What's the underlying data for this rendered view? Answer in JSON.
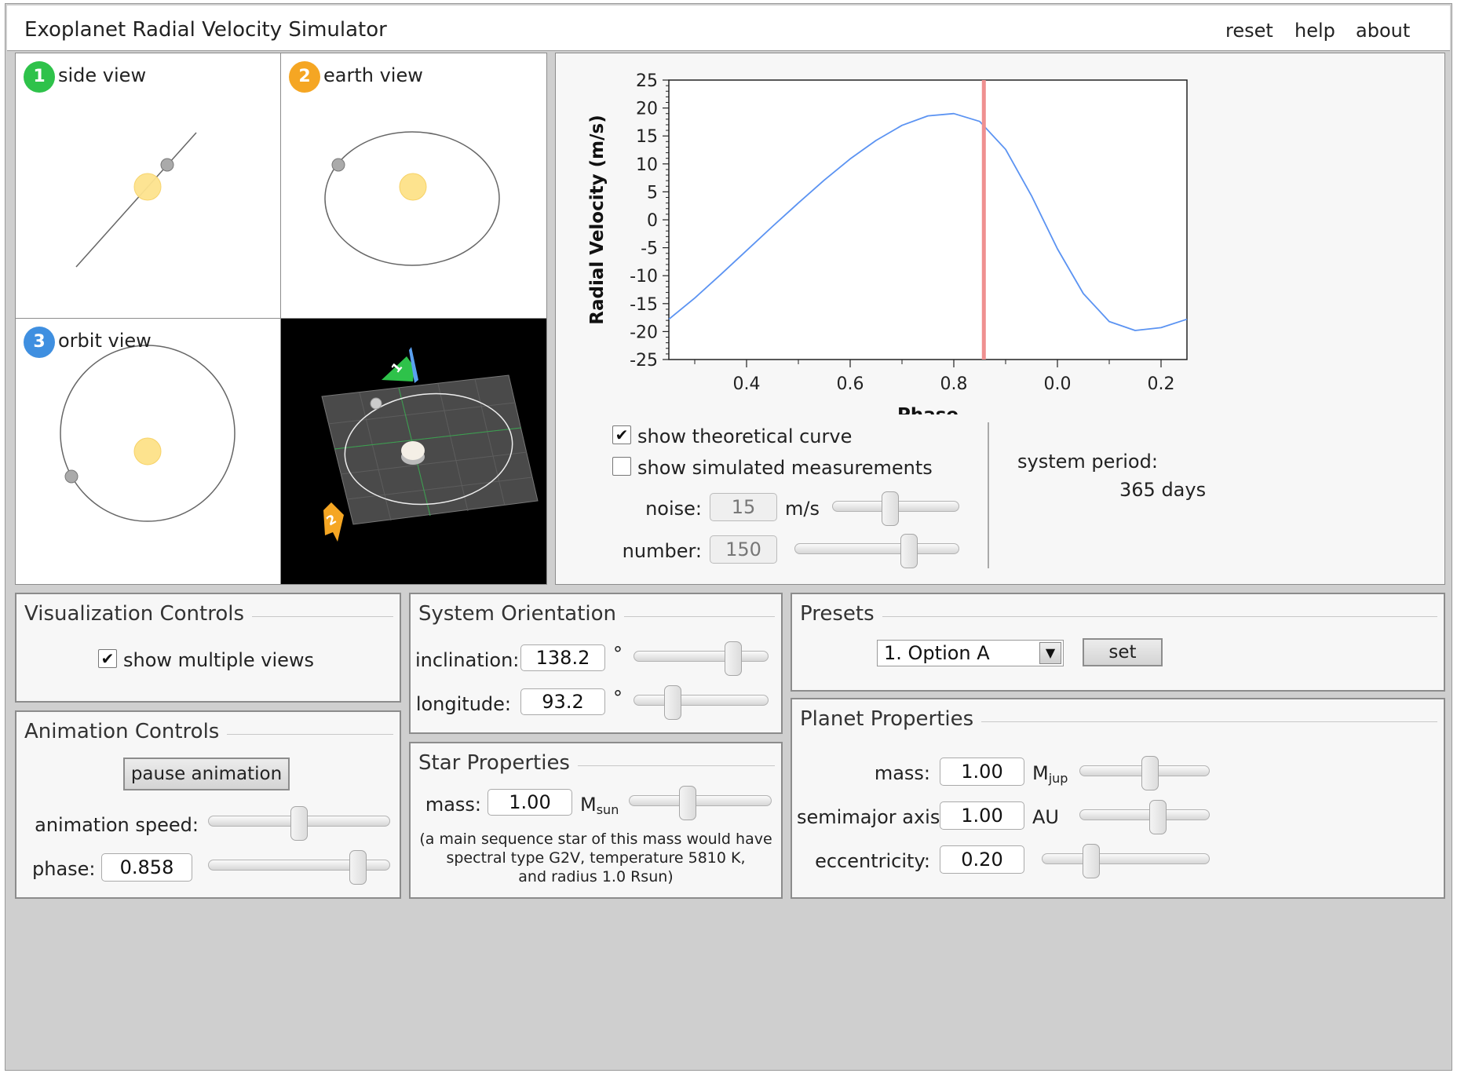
{
  "app": {
    "title": "Exoplanet Radial Velocity Simulator",
    "menu": {
      "reset": "reset",
      "help": "help",
      "about": "about"
    }
  },
  "views": {
    "side": {
      "number": "1",
      "label": "side view",
      "badge_color": "#2ec24a"
    },
    "earth": {
      "number": "2",
      "label": "earth view",
      "badge_color": "#f5a623"
    },
    "orbit": {
      "number": "3",
      "label": "orbit view",
      "badge_color": "#3f8fe0"
    },
    "three_d": {
      "earth_marker": "2",
      "north_marker": "1",
      "icon": "3d-orbit-scene"
    }
  },
  "chart_data": {
    "type": "line",
    "xlabel": "Phase",
    "ylabel": "Radial Velocity (m/s)",
    "x_ticks": [
      "0.4",
      "0.6",
      "0.8",
      "0.0",
      "0.2"
    ],
    "y_ticks": [
      "25",
      "20",
      "15",
      "10",
      "5",
      "0",
      "-5",
      "-10",
      "-15",
      "-20",
      "-25"
    ],
    "ylim": [
      -25,
      25
    ],
    "x_range_phase": [
      0.25,
      1.25
    ],
    "current_phase": 0.858,
    "curve_color": "#5b93f2",
    "marker_color": "#ef9090",
    "series": [
      {
        "x": [
          0.25,
          0.3,
          0.35,
          0.4,
          0.45,
          0.5,
          0.55,
          0.6,
          0.65,
          0.7,
          0.75,
          0.8,
          0.85,
          0.9,
          0.95,
          1.0,
          1.05,
          1.1,
          1.15,
          1.2,
          1.25
        ],
        "values": [
          -17.8,
          -14.0,
          -9.8,
          -5.5,
          -1.2,
          3.0,
          7.1,
          10.9,
          14.2,
          16.9,
          18.6,
          19.0,
          17.6,
          12.6,
          4.3,
          -5.2,
          -13.2,
          -18.2,
          -19.8,
          -19.3,
          -17.8
        ]
      }
    ]
  },
  "measurements": {
    "show_theoretical": {
      "label": "show theoretical curve",
      "checked": true
    },
    "show_simulated": {
      "label": "show simulated measurements",
      "checked": false
    },
    "noise": {
      "label": "noise:",
      "value": "15",
      "unit": "m/s",
      "slider": 0.45
    },
    "number": {
      "label": "number:",
      "value": "150",
      "slider": 0.72
    },
    "period_label": "system period:",
    "period_value": "365 days"
  },
  "visualization": {
    "title": "Visualization Controls",
    "show_multiple_views": {
      "label": "show multiple views",
      "checked": true
    }
  },
  "animation": {
    "title": "Animation Controls",
    "pause_label": "pause animation",
    "speed_label": "animation speed:",
    "speed_slider": 0.5,
    "phase_label": "phase:",
    "phase_value": "0.858",
    "phase_slider": 0.858
  },
  "orientation": {
    "title": "System Orientation",
    "inclination_label": "inclination:",
    "inclination_value": "138.2",
    "inclination_slider": 0.77,
    "longitude_label": "longitude:",
    "longitude_value": "93.2",
    "longitude_slider": 0.26,
    "degree": "°"
  },
  "star": {
    "title": "Star Properties",
    "mass_label": "mass:",
    "mass_value": "1.00",
    "unit_main": "M",
    "unit_sub": "sun",
    "mass_slider": 0.4,
    "desc_line1": "(a main sequence star of this mass would have",
    "desc_line2": "spectral type G2V, temperature 5810 K,",
    "desc_line3": "and radius 1.0 Rsun)"
  },
  "presets": {
    "title": "Presets",
    "selected": "1. Option A",
    "set_label": "set"
  },
  "planet": {
    "title": "Planet Properties",
    "mass_label": "mass:",
    "mass_value": "1.00",
    "mass_unit_main": "M",
    "mass_unit_sub": "jup",
    "mass_slider": 0.55,
    "axis_label": "semimajor axis:",
    "axis_value": "1.00",
    "axis_unit": "AU",
    "axis_slider": 0.62,
    "ecc_label": "eccentricity:",
    "ecc_value": "0.20",
    "ecc_slider": 0.27
  }
}
